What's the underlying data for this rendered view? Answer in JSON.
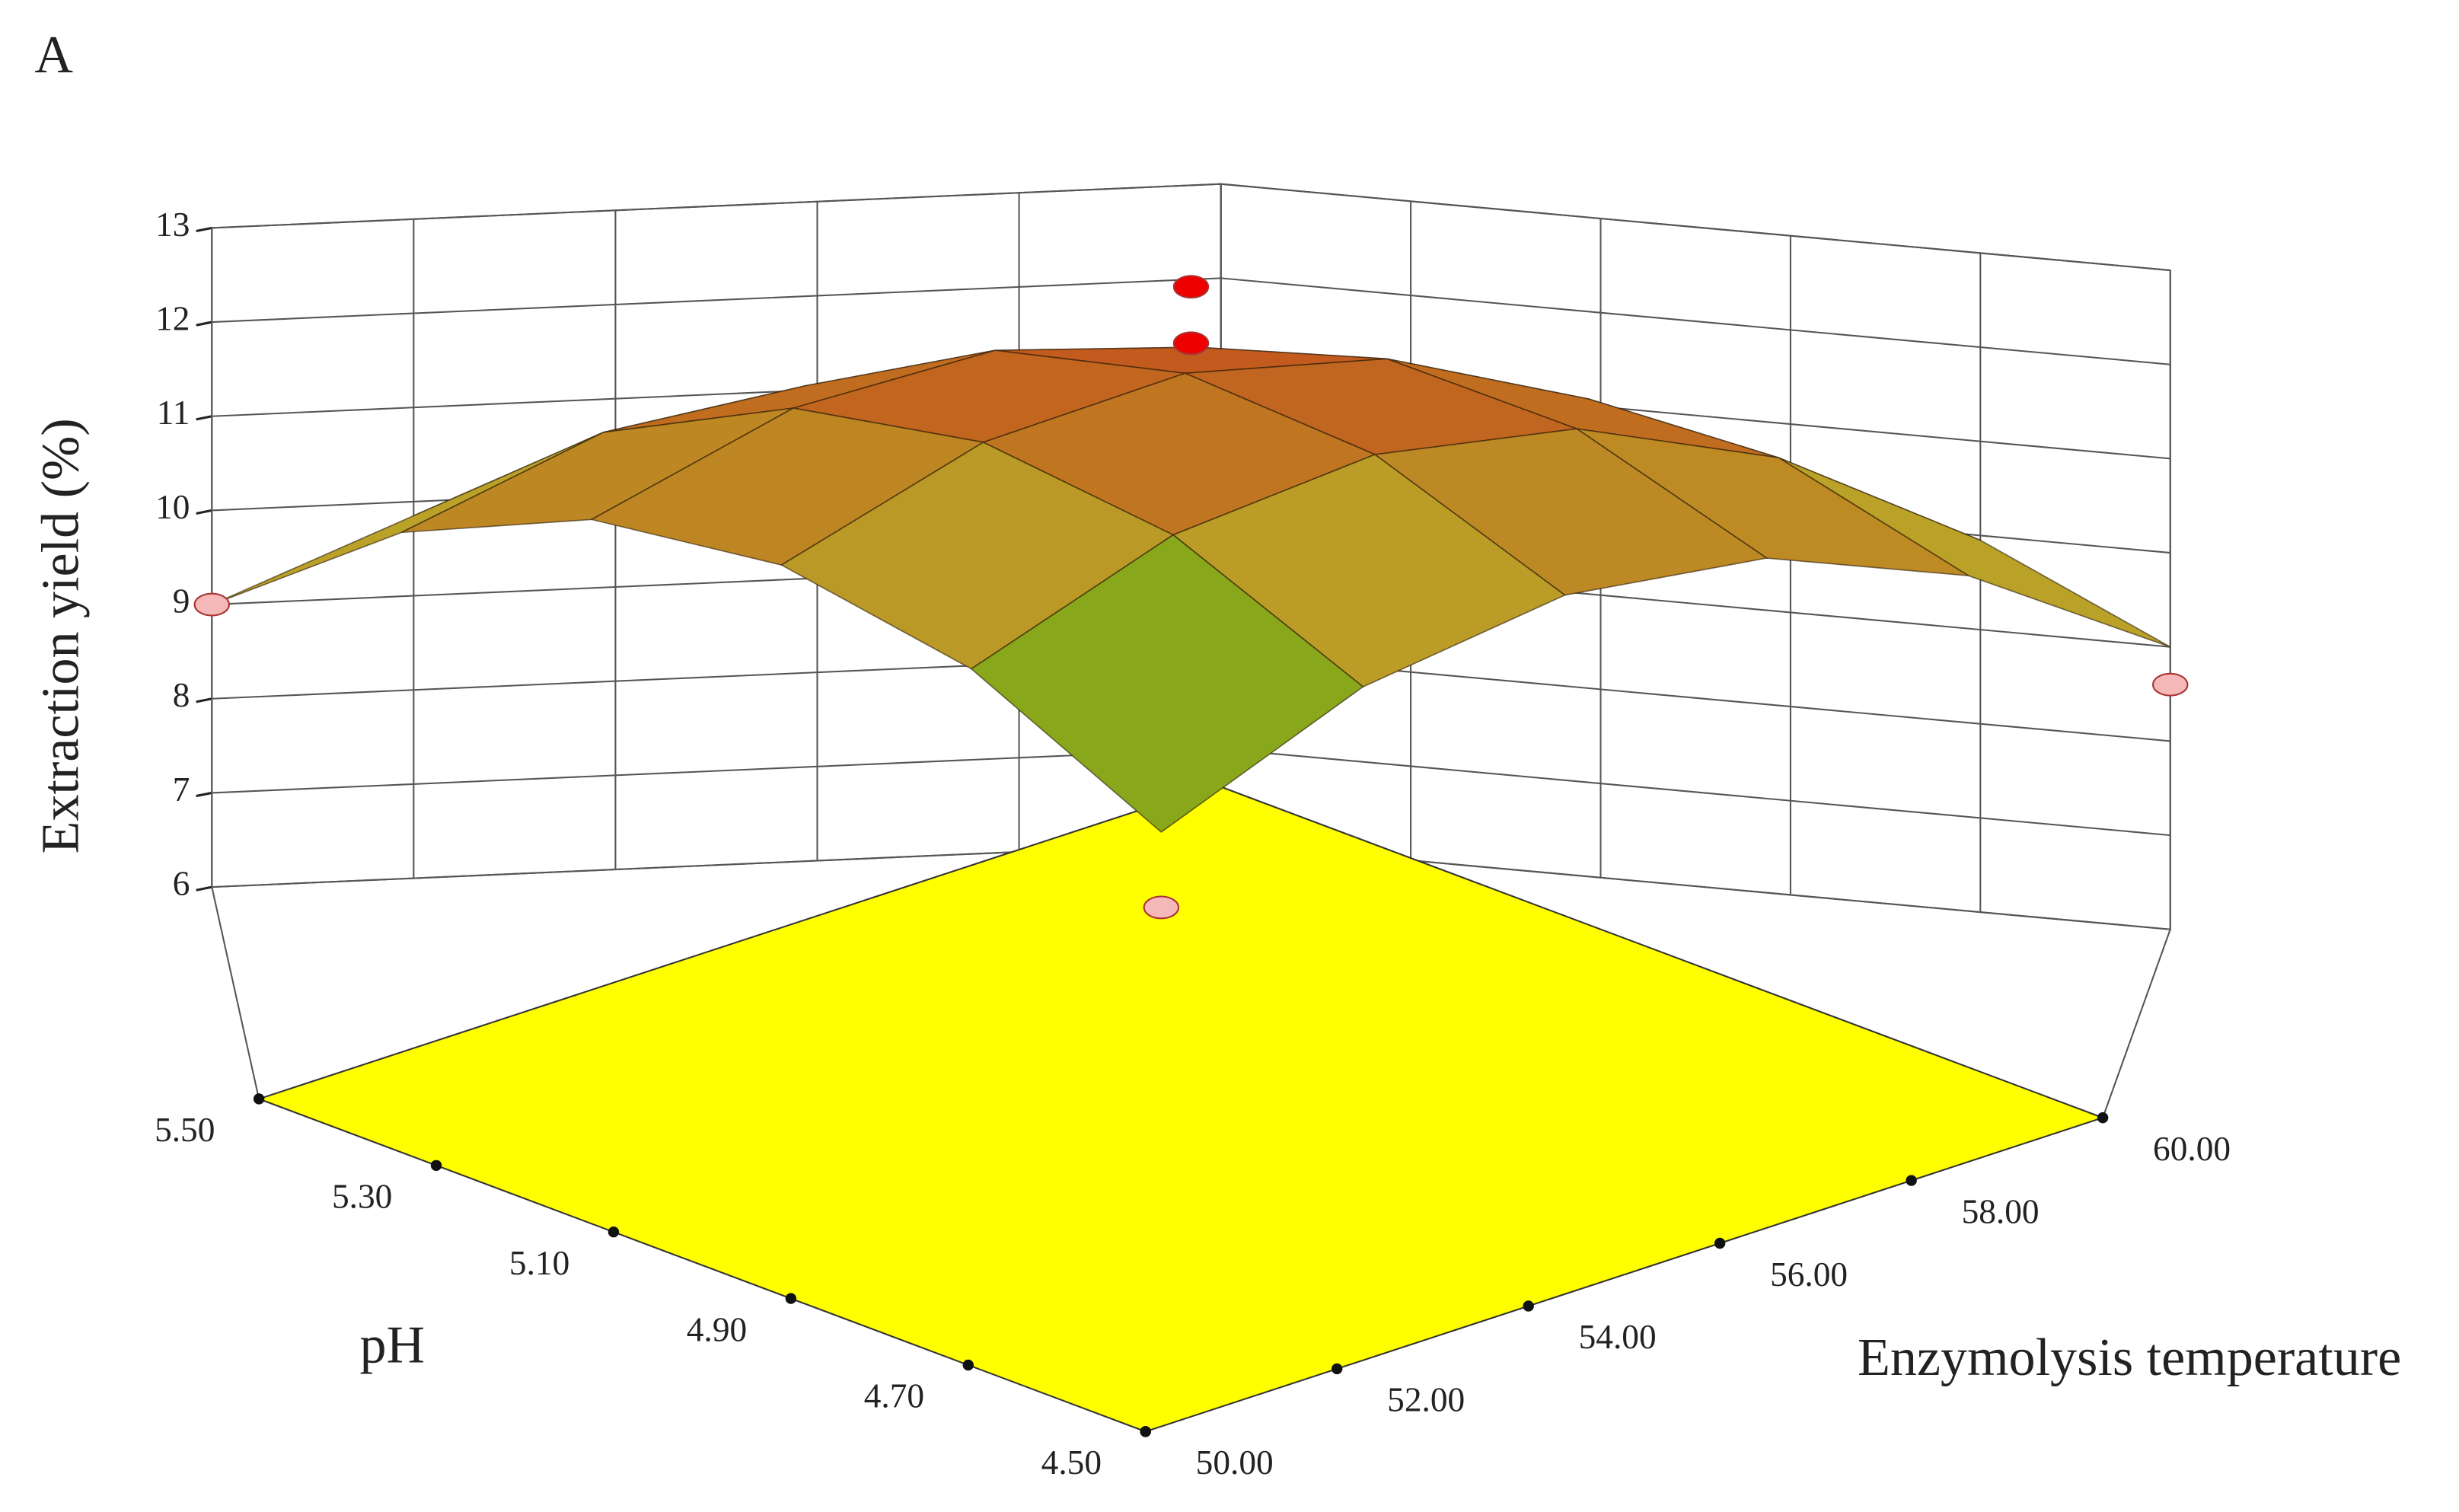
{
  "chart_data": {
    "type": "surface",
    "title": "A",
    "xlabel": "Enzymolysis temperature",
    "ylabel": "pH",
    "zlabel": "Extraction yield (%)",
    "xlim": [
      50,
      60
    ],
    "ylim": [
      4.5,
      5.5
    ],
    "zlim": [
      6,
      13
    ],
    "xticks": [
      {
        "value": 50,
        "label": "50.00"
      },
      {
        "value": 52,
        "label": "52.00"
      },
      {
        "value": 54,
        "label": "54.00"
      },
      {
        "value": 56,
        "label": "56.00"
      },
      {
        "value": 58,
        "label": "58.00"
      },
      {
        "value": 60,
        "label": "60.00"
      }
    ],
    "yticks": [
      {
        "value": 4.5,
        "label": "4.50"
      },
      {
        "value": 4.7,
        "label": "4.70"
      },
      {
        "value": 4.9,
        "label": "4.90"
      },
      {
        "value": 5.1,
        "label": "5.10"
      },
      {
        "value": 5.3,
        "label": "5.30"
      },
      {
        "value": 5.5,
        "label": "5.50"
      }
    ],
    "zticks": [
      6,
      7,
      8,
      9,
      10,
      11,
      12,
      13
    ],
    "floor_color": "#ffff00",
    "x": [
      50,
      52,
      54,
      56,
      58,
      60
    ],
    "y": [
      4.5,
      4.7,
      4.9,
      5.1,
      5.3,
      5.5
    ],
    "z": [
      [
        7.5,
        8.95,
        9.83,
        10.13,
        9.85,
        9.0
      ],
      [
        9.05,
        10.38,
        11.14,
        11.32,
        10.92,
        9.95
      ],
      [
        9.97,
        11.18,
        11.82,
        11.88,
        11.36,
        10.27
      ],
      [
        10.27,
        11.36,
        11.88,
        11.82,
        11.18,
        9.97
      ],
      [
        9.95,
        10.92,
        11.32,
        11.14,
        10.38,
        9.05
      ],
      [
        9.0,
        9.85,
        10.13,
        9.83,
        8.95,
        7.5
      ]
    ],
    "points": [
      {
        "x": 55,
        "y": 5.0,
        "z": 12.6,
        "color": "#ee0000"
      },
      {
        "x": 55,
        "y": 5.0,
        "z": 12.0,
        "color": "#ee0000"
      },
      {
        "x": 50,
        "y": 5.5,
        "z": 9.0,
        "color": "#f4b8b8"
      },
      {
        "x": 60,
        "y": 4.5,
        "z": 8.6,
        "color": "#f4b8b8"
      },
      {
        "x": 50,
        "y": 4.5,
        "z": 6.7,
        "color": "#f4b8b8"
      }
    ]
  }
}
